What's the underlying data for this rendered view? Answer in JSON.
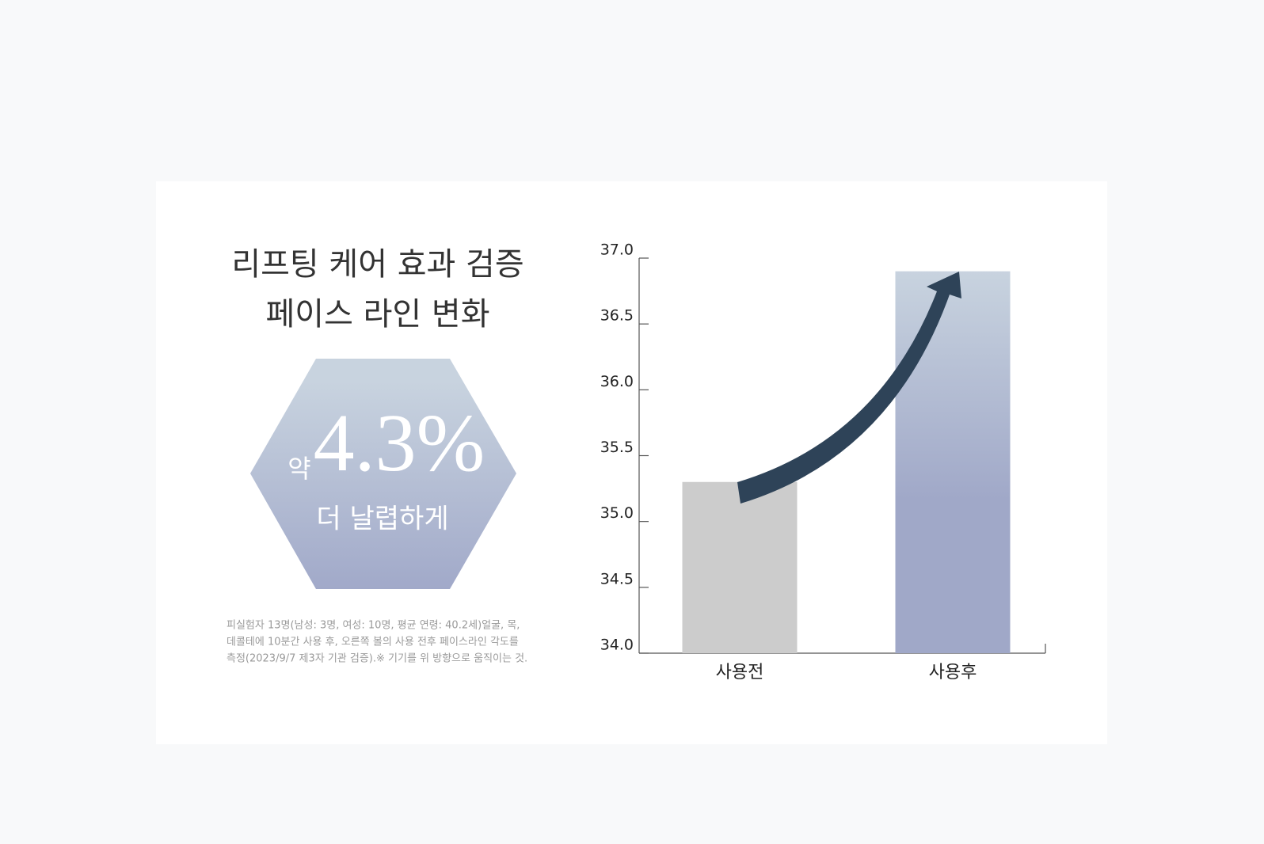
{
  "summary": {
    "headline": [
      "리프팅 케어 효과 검증",
      "페이스 라인 변화"
    ],
    "badge": {
      "prefix": "약",
      "figure": "4.3%",
      "caption": "더 날렵하게"
    },
    "note": [
      "피실험자 13명(남성: 3명, 여성: 10명, 평균 연령: 40.2세)얼굴, 목,",
      "데콜테에 10분간 사용 후, 오른쪽 볼의 사용 전후 페이스라인 각도를",
      "측정(2023/9/7 제3자 기관 검증).※ 기기를 위 방향으로 움직이는 것."
    ]
  },
  "chart_data": {
    "type": "bar",
    "categories": [
      "사용전",
      "사용후"
    ],
    "values": [
      35.3,
      36.9
    ],
    "colors": [
      "#cccccc",
      "#a0a8c8"
    ],
    "ylim": [
      34,
      37
    ],
    "yticks": [
      {
        "value": 34,
        "label": "34.0"
      },
      {
        "value": 34.5,
        "label": "34.5"
      },
      {
        "value": 35,
        "label": "35.0"
      },
      {
        "value": 35.5,
        "label": "35.5"
      },
      {
        "value": 36,
        "label": "36.0"
      },
      {
        "value": 36.5,
        "label": "36.5"
      },
      {
        "value": 37,
        "label": "37.0"
      }
    ],
    "grid": false
  }
}
